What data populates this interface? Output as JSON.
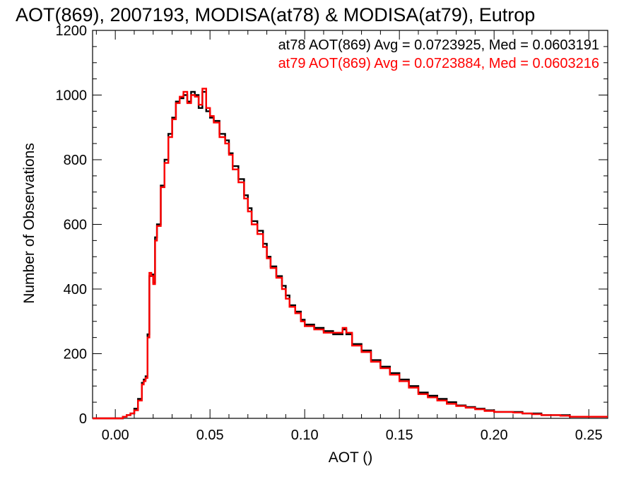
{
  "chart_data": {
    "type": "line",
    "step": true,
    "title": "AOT(869), 2007193, MODISA(at78) & MODISA(at79), Eutrop",
    "xlabel": "AOT ()",
    "ylabel": "Number of Observations",
    "xlim": [
      -0.012,
      0.26
    ],
    "ylim": [
      0,
      1200
    ],
    "xticks": [
      0.0,
      0.05,
      0.1,
      0.15,
      0.2,
      0.25
    ],
    "xtick_labels": [
      "0.00",
      "0.05",
      "0.10",
      "0.15",
      "0.20",
      "0.25"
    ],
    "yticks": [
      0,
      200,
      400,
      600,
      800,
      1000,
      1200
    ],
    "ytick_labels": [
      "0",
      "200",
      "400",
      "600",
      "800",
      "1000",
      "1200"
    ],
    "grid": false,
    "series": [
      {
        "name": "at78",
        "color": "#000000",
        "stats_label": "at78 AOT(869) Avg = 0.0723925, Med = 0.0603191",
        "x": [
          -0.012,
          0.0,
          0.004,
          0.006,
          0.008,
          0.01,
          0.012,
          0.014,
          0.015,
          0.016,
          0.017,
          0.018,
          0.019,
          0.02,
          0.021,
          0.022,
          0.024,
          0.026,
          0.028,
          0.03,
          0.032,
          0.034,
          0.036,
          0.038,
          0.04,
          0.042,
          0.044,
          0.046,
          0.048,
          0.05,
          0.052,
          0.055,
          0.058,
          0.06,
          0.062,
          0.065,
          0.068,
          0.07,
          0.072,
          0.075,
          0.078,
          0.08,
          0.082,
          0.085,
          0.088,
          0.09,
          0.092,
          0.095,
          0.098,
          0.1,
          0.105,
          0.11,
          0.115,
          0.12,
          0.122,
          0.125,
          0.13,
          0.135,
          0.14,
          0.145,
          0.15,
          0.155,
          0.16,
          0.165,
          0.17,
          0.175,
          0.18,
          0.185,
          0.19,
          0.195,
          0.2,
          0.205,
          0.21,
          0.215,
          0.22,
          0.225,
          0.23,
          0.235,
          0.24,
          0.245,
          0.25,
          0.255,
          0.26
        ],
        "y": [
          0,
          0,
          5,
          10,
          15,
          30,
          60,
          110,
          120,
          130,
          260,
          440,
          445,
          420,
          560,
          600,
          720,
          800,
          880,
          930,
          980,
          990,
          1000,
          980,
          1010,
          1000,
          960,
          1010,
          950,
          930,
          920,
          880,
          860,
          820,
          780,
          740,
          690,
          650,
          610,
          580,
          540,
          500,
          470,
          440,
          410,
          380,
          350,
          330,
          305,
          290,
          280,
          270,
          260,
          275,
          260,
          230,
          210,
          180,
          160,
          140,
          120,
          100,
          80,
          70,
          60,
          50,
          40,
          35,
          30,
          25,
          20,
          20,
          20,
          15,
          15,
          10,
          10,
          10,
          5,
          5,
          5,
          5,
          5
        ]
      },
      {
        "name": "at79",
        "color": "#ff0000",
        "stats_label": "at79 AOT(869) Avg = 0.0723884, Med = 0.0603216",
        "x": [
          -0.012,
          0.0,
          0.004,
          0.006,
          0.008,
          0.01,
          0.012,
          0.014,
          0.015,
          0.016,
          0.017,
          0.018,
          0.019,
          0.02,
          0.021,
          0.022,
          0.024,
          0.026,
          0.028,
          0.03,
          0.032,
          0.034,
          0.036,
          0.038,
          0.04,
          0.042,
          0.044,
          0.046,
          0.048,
          0.05,
          0.052,
          0.055,
          0.058,
          0.06,
          0.062,
          0.065,
          0.068,
          0.07,
          0.072,
          0.075,
          0.078,
          0.08,
          0.082,
          0.085,
          0.088,
          0.09,
          0.092,
          0.095,
          0.098,
          0.1,
          0.105,
          0.11,
          0.115,
          0.12,
          0.122,
          0.125,
          0.13,
          0.135,
          0.14,
          0.145,
          0.15,
          0.155,
          0.16,
          0.165,
          0.17,
          0.175,
          0.18,
          0.185,
          0.19,
          0.195,
          0.2,
          0.205,
          0.21,
          0.215,
          0.22,
          0.225,
          0.23,
          0.235,
          0.24,
          0.245,
          0.25,
          0.255,
          0.26
        ],
        "y": [
          0,
          0,
          5,
          10,
          15,
          25,
          55,
          105,
          115,
          125,
          250,
          450,
          440,
          415,
          550,
          595,
          715,
          790,
          870,
          925,
          975,
          995,
          1010,
          975,
          1000,
          995,
          970,
          1020,
          960,
          935,
          915,
          870,
          850,
          815,
          770,
          730,
          680,
          640,
          600,
          570,
          530,
          495,
          465,
          435,
          400,
          370,
          345,
          325,
          300,
          285,
          275,
          265,
          265,
          280,
          265,
          225,
          205,
          175,
          155,
          135,
          115,
          95,
          75,
          65,
          55,
          45,
          38,
          33,
          28,
          23,
          20,
          20,
          18,
          15,
          13,
          10,
          10,
          8,
          5,
          5,
          5,
          5,
          5
        ]
      }
    ]
  }
}
